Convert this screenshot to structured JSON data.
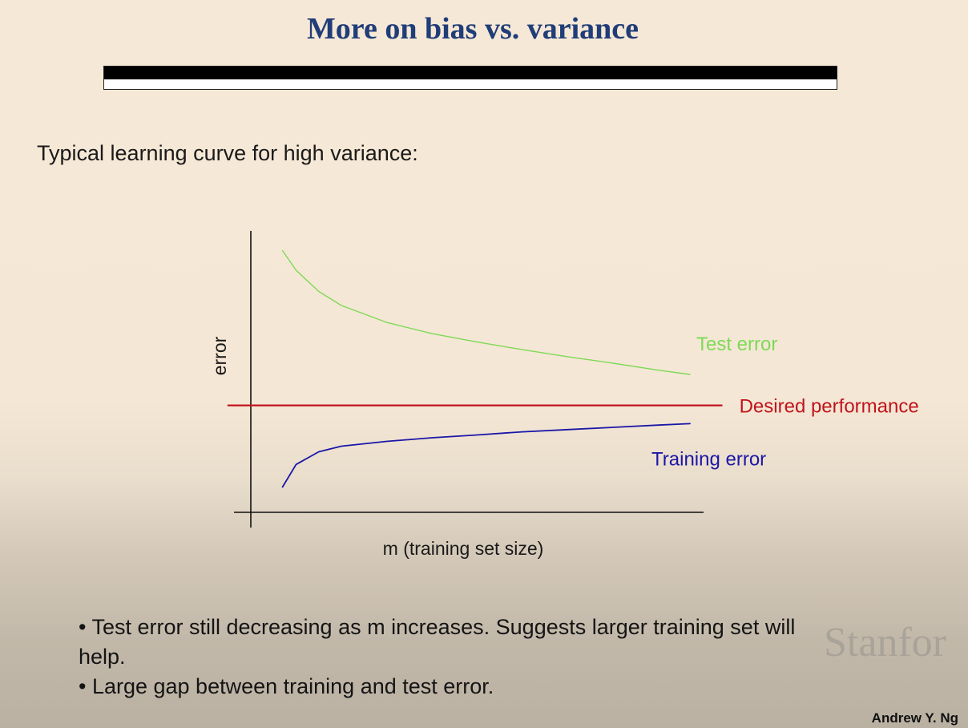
{
  "slide": {
    "title": "More on bias vs. variance",
    "subtitle": "Typical learning curve for high variance:",
    "bullets": [
      "• Test error still decreasing as m increases.  Suggests larger training set will help.",
      "• Large gap between training and test error."
    ],
    "watermark": "Stanfor",
    "author": "Andrew Y. Ng"
  },
  "chart_data": {
    "type": "line",
    "xlabel": "m (training set size)",
    "ylabel": "error",
    "xlim": [
      0,
      10
    ],
    "ylim": [
      0,
      10
    ],
    "grid": false,
    "ticks": false,
    "legend": "direct labels at right of each line",
    "series": [
      {
        "name": "Test error",
        "color": "#7ed957",
        "x": [
          0.7,
          1.0,
          1.5,
          2.0,
          3.0,
          4.0,
          5.0,
          6.0,
          7.0,
          8.0,
          9.0,
          9.7
        ],
        "y": [
          9.3,
          8.6,
          7.85,
          7.35,
          6.75,
          6.35,
          6.05,
          5.78,
          5.53,
          5.3,
          5.05,
          4.9
        ]
      },
      {
        "name": "Desired performance",
        "color": "#c0141c",
        "x": [
          -0.5,
          10.4
        ],
        "y": [
          3.8,
          3.8
        ]
      },
      {
        "name": "Training error",
        "color": "#1a16a8",
        "x": [
          0.7,
          1.0,
          1.5,
          2.0,
          3.0,
          4.0,
          5.0,
          6.0,
          7.0,
          8.0,
          9.0,
          9.7
        ],
        "y": [
          0.9,
          1.7,
          2.15,
          2.35,
          2.52,
          2.65,
          2.75,
          2.86,
          2.94,
          3.02,
          3.1,
          3.15
        ]
      }
    ]
  }
}
